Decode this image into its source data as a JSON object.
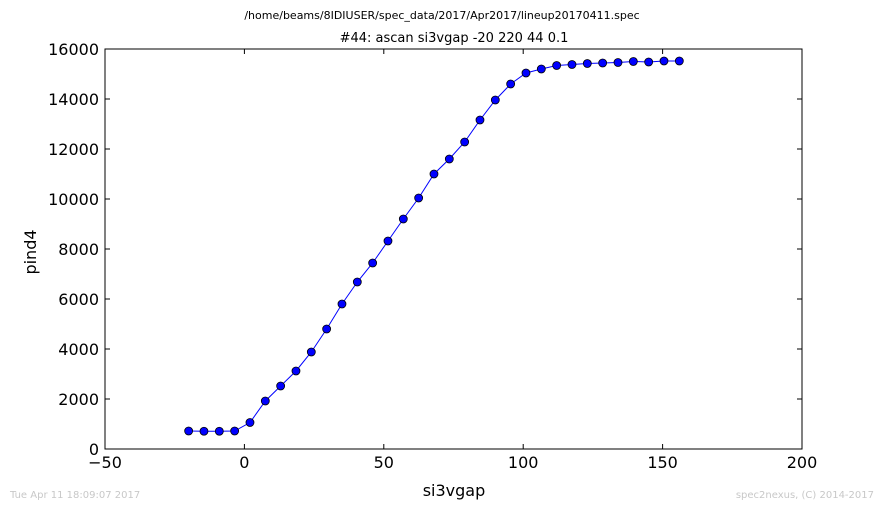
{
  "chart_data": {
    "type": "line",
    "suptitle": "/home/beams/8IDIUSER/spec_data/2017/Apr2017/lineup20170411.spec",
    "title": "#44: ascan  si3vgap -20 220  44 0.1",
    "xlabel": "si3vgap",
    "ylabel": "pind4",
    "xlim": [
      -50,
      200
    ],
    "ylim": [
      0,
      16000
    ],
    "xticks": [
      -50,
      0,
      50,
      100,
      150,
      200
    ],
    "yticks": [
      0,
      2000,
      4000,
      6000,
      8000,
      10000,
      12000,
      14000,
      16000
    ],
    "xtick_labels": [
      "−50",
      "0",
      "50",
      "100",
      "150",
      "200"
    ],
    "ytick_labels": [
      "0",
      "2000",
      "4000",
      "6000",
      "8000",
      "10000",
      "12000",
      "14000",
      "16000"
    ],
    "grid": false,
    "series": [
      {
        "color": "#0000ff",
        "marker": "circle",
        "x": [
          -20,
          -14.5,
          -9,
          -3.5,
          2,
          7.5,
          13,
          18.5,
          24,
          29.5,
          35,
          40.5,
          46,
          51.5,
          57,
          62.5,
          68,
          73.5,
          79,
          84.5,
          90,
          95.5,
          101,
          106.5,
          112,
          117.5,
          123,
          128.5,
          134,
          139.5,
          145,
          150.5,
          156
        ],
        "y": [
          720,
          710,
          710,
          720,
          1060,
          1920,
          2520,
          3120,
          3880,
          4800,
          5800,
          6680,
          7440,
          8320,
          9200,
          10040,
          11000,
          11600,
          12280,
          13160,
          13960,
          14600,
          15040,
          15200,
          15340,
          15380,
          15420,
          15440,
          15460,
          15500,
          15480,
          15520,
          15520
        ]
      }
    ]
  },
  "footer": {
    "timestamp": "Tue Apr 11 18:09:07 2017",
    "credit": "spec2nexus, (C) 2014-2017"
  }
}
